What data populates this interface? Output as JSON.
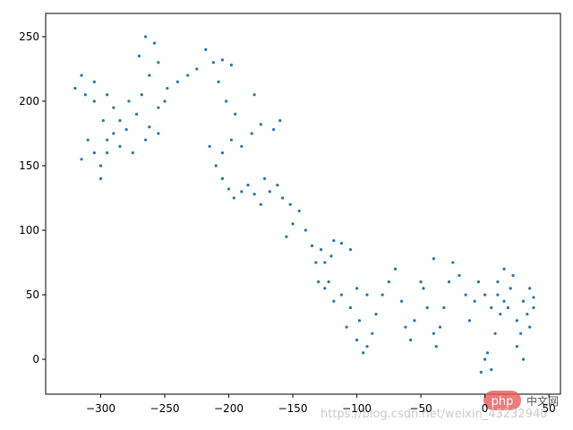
{
  "chart_data": {
    "type": "scatter",
    "color": "#1f77b4",
    "xlim": [
      -343,
      59
    ],
    "ylim": [
      -27,
      268
    ],
    "xticks": [
      {
        "value": -300,
        "label": "−300"
      },
      {
        "value": -250,
        "label": "−250"
      },
      {
        "value": -200,
        "label": "−200"
      },
      {
        "value": -150,
        "label": "−150"
      },
      {
        "value": -100,
        "label": "−100"
      },
      {
        "value": -50,
        "label": "−50"
      },
      0,
      50
    ],
    "yticks": [
      0,
      50,
      100,
      150,
      200,
      250
    ],
    "x": [
      0,
      5,
      -3,
      2,
      8,
      12,
      10,
      15,
      20,
      18,
      25,
      30,
      35,
      38,
      33,
      28,
      25,
      30,
      35,
      38,
      22,
      15,
      10,
      5,
      0,
      -5,
      -8,
      -12,
      -15,
      -20,
      -25,
      -28,
      -32,
      -35,
      -38,
      -40,
      -45,
      -48,
      -40,
      -50,
      -55,
      -58,
      -62,
      -65,
      -70,
      -75,
      -80,
      -85,
      -88,
      -92,
      -95,
      -100,
      -98,
      -92,
      -100,
      -105,
      -108,
      -112,
      -118,
      -122,
      -125,
      -128,
      -132,
      -130,
      -125,
      -120,
      -112,
      -105,
      -118,
      -135,
      -140,
      -145,
      -150,
      -155,
      -152,
      -158,
      -162,
      -168,
      -172,
      -175,
      -180,
      -185,
      -190,
      -196,
      -200,
      -205,
      -210,
      -215,
      -205,
      -198,
      -190,
      -182,
      -175,
      -165,
      -160,
      -180,
      -195,
      -202,
      -208,
      -212,
      -218,
      -205,
      -198,
      -225,
      -232,
      -240,
      -248,
      -255,
      -258,
      -265,
      -270,
      -262,
      -268,
      -272,
      -262,
      -255,
      -250,
      -278,
      -285,
      -290,
      -295,
      -300,
      -305,
      -310,
      -315,
      -300,
      -295,
      -285,
      -280,
      -298,
      -305,
      -312,
      -320,
      -315,
      -305,
      -295,
      -290,
      -275,
      -265,
      -255
    ],
    "values": [
      0,
      -8,
      -10,
      5,
      20,
      35,
      50,
      45,
      55,
      40,
      30,
      45,
      55,
      48,
      35,
      20,
      10,
      0,
      25,
      40,
      65,
      70,
      60,
      40,
      50,
      60,
      45,
      30,
      50,
      65,
      75,
      60,
      40,
      25,
      10,
      20,
      40,
      55,
      78,
      60,
      30,
      15,
      25,
      45,
      70,
      60,
      50,
      35,
      20,
      10,
      5,
      15,
      30,
      50,
      55,
      40,
      25,
      50,
      45,
      60,
      75,
      85,
      75,
      60,
      55,
      80,
      90,
      85,
      92,
      88,
      100,
      115,
      105,
      95,
      120,
      125,
      135,
      130,
      140,
      120,
      128,
      135,
      130,
      125,
      132,
      140,
      150,
      165,
      160,
      170,
      165,
      175,
      182,
      178,
      185,
      205,
      190,
      200,
      215,
      230,
      240,
      232,
      228,
      225,
      220,
      215,
      210,
      230,
      245,
      250,
      235,
      220,
      205,
      190,
      180,
      195,
      200,
      200,
      185,
      175,
      160,
      150,
      160,
      170,
      155,
      140,
      170,
      165,
      178,
      185,
      200,
      205,
      210,
      220,
      215,
      205,
      195,
      160,
      170,
      175
    ]
  },
  "watermark": {
    "logo": "php",
    "site": "中文网",
    "url": "https://blog.csdn.net/weixin_43232940"
  }
}
